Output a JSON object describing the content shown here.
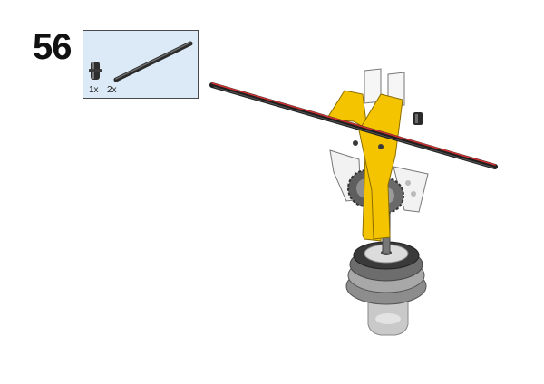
{
  "step": {
    "number": "56"
  },
  "parts": [
    {
      "name": "pin-connector",
      "quantity": "1x"
    },
    {
      "name": "axle",
      "quantity": "2x"
    }
  ],
  "colors": {
    "yellow": "#f5c400",
    "axle": "#2b2b2b",
    "axle_highlight": "#d23030",
    "white": "#f4f4f4",
    "grey": "#9a9a9a",
    "dark_grey": "#555555",
    "panel": "#dbeaf6"
  }
}
